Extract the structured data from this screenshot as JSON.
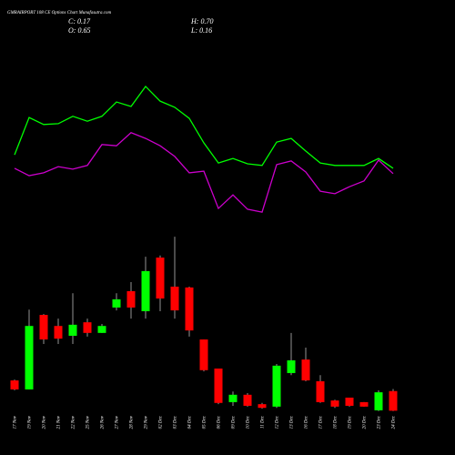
{
  "chart_data": {
    "type": "candlestick",
    "title": "GMRAIRPORT 108 CE Options Chart Munafasutra.com",
    "summary": {
      "close": "C: 0.17",
      "open": "O: 0.65",
      "high": "H: 0.70",
      "low": "L: 0.16"
    },
    "categories": [
      "17 Nov",
      "19 Nov",
      "20 Nov",
      "21 Nov",
      "22 Nov",
      "25 Nov",
      "26 Nov",
      "27 Nov",
      "28 Nov",
      "29 Nov",
      "02 Dec",
      "03 Dec",
      "04 Dec",
      "05 Dec",
      "06 Dec",
      "09 Dec",
      "10 Dec",
      "11 Dec",
      "12 Dec",
      "13 Dec",
      "16 Dec",
      "17 Dec",
      "18 Dec",
      "19 Dec",
      "20 Dec",
      "23 Dec",
      "24 Dec"
    ],
    "open": [
      0.91,
      0.69,
      2.51,
      2.24,
      2.0,
      2.33,
      2.07,
      2.69,
      3.09,
      2.6,
      3.91,
      3.2,
      3.18,
      1.91,
      1.2,
      0.38,
      0.56,
      0.33,
      0.27,
      1.09,
      1.42,
      0.89,
      0.42,
      0.49,
      0.38,
      0.18,
      0.65
    ],
    "high": [
      0.93,
      2.64,
      2.53,
      2.42,
      3.04,
      2.42,
      2.29,
      3.04,
      3.31,
      3.93,
      3.96,
      4.42,
      3.2,
      1.91,
      1.2,
      0.64,
      0.6,
      0.36,
      1.31,
      2.07,
      1.71,
      1.04,
      0.44,
      0.49,
      0.38,
      0.67,
      0.7
    ],
    "low": [
      0.67,
      0.69,
      1.8,
      1.8,
      1.8,
      1.98,
      2.07,
      2.62,
      2.42,
      2.42,
      2.6,
      2.42,
      1.98,
      1.13,
      0.33,
      0.29,
      0.27,
      0.22,
      0.24,
      1.04,
      0.89,
      0.36,
      0.24,
      0.27,
      0.27,
      0.16,
      0.16
    ],
    "close": [
      0.69,
      2.24,
      1.91,
      1.93,
      2.27,
      2.07,
      2.24,
      2.89,
      2.69,
      3.58,
      2.91,
      2.62,
      2.13,
      1.16,
      0.36,
      0.56,
      0.29,
      0.24,
      1.27,
      1.4,
      0.91,
      0.38,
      0.27,
      0.29,
      0.27,
      0.62,
      0.17
    ],
    "up_color": "#00ff00",
    "down_color": "#ff0000",
    "lines": [
      {
        "color": "#00ff00",
        "values": [
          6.42,
          7.33,
          7.16,
          7.18,
          7.36,
          7.24,
          7.36,
          7.71,
          7.6,
          8.09,
          7.73,
          7.58,
          7.31,
          6.71,
          6.22,
          6.33,
          6.2,
          6.16,
          6.73,
          6.82,
          6.51,
          6.22,
          6.16,
          6.16,
          6.16,
          6.33,
          6.09
        ]
      },
      {
        "color": "#cc00cc",
        "values": [
          6.09,
          5.91,
          5.98,
          6.13,
          6.07,
          6.16,
          6.67,
          6.64,
          6.96,
          6.82,
          6.64,
          6.38,
          5.98,
          6.02,
          5.11,
          5.44,
          5.09,
          5.02,
          6.18,
          6.27,
          6.0,
          5.53,
          5.47,
          5.64,
          5.78,
          6.29,
          5.96
        ]
      }
    ]
  }
}
